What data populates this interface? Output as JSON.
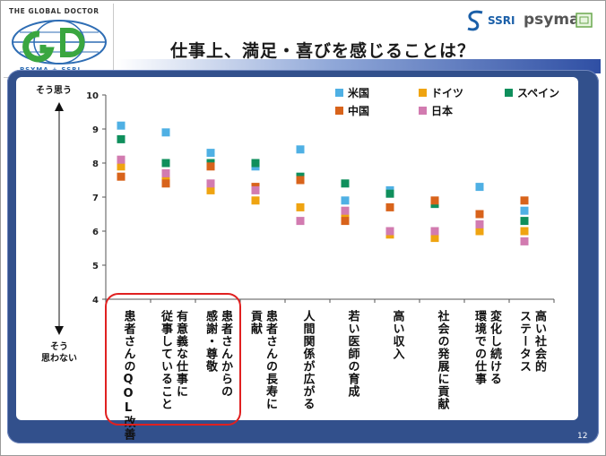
{
  "header": {
    "logo_left": {
      "title": "THE GLOBAL DOCTOR",
      "sub": "PSYMA + SSRI"
    },
    "logo_right": {
      "ssri": "SSRI",
      "psyma": "psyma"
    },
    "title": "仕事上、満足・喜びを感じることは？"
  },
  "page_number": "12",
  "colors": {
    "usa": "#4fb0e4",
    "germany": "#efa411",
    "spain": "#0f8f5c",
    "china": "#d8631b",
    "japan": "#d27bb0",
    "panel": "#32508c",
    "highlight": "#e02020"
  },
  "chart_data": {
    "type": "scatter",
    "title": "",
    "ylim": [
      4,
      10
    ],
    "yticks": [
      "4",
      "5",
      "6",
      "7",
      "8",
      "9",
      "10"
    ],
    "y_axis_top_label": "そう思う",
    "y_axis_bottom_label": [
      "そう",
      "思わない"
    ],
    "grid": false,
    "legend_position": "top-right",
    "categories": [
      [
        "患者さんのQOL改善"
      ],
      [
        "有意義な仕事に",
        "従事していること"
      ],
      [
        "患者さんからの",
        "感謝・尊敬"
      ],
      [
        "患者さんの長寿に",
        "貢献"
      ],
      [
        "人間関係が広がる"
      ],
      [
        "若い医師の育成"
      ],
      [
        "高い収入"
      ],
      [
        "社会の発展に貢献"
      ],
      [
        "変化し続ける",
        "環境での仕事"
      ],
      [
        "高い社会的",
        "ステータス"
      ]
    ],
    "highlighted_categories": [
      0,
      1,
      2
    ],
    "series": [
      {
        "name": "米国",
        "color_key": "usa",
        "values": [
          9.1,
          8.9,
          8.3,
          7.9,
          8.4,
          6.9,
          7.2,
          6.8,
          7.3,
          6.6
        ]
      },
      {
        "name": "ドイツ",
        "color_key": "germany",
        "values": [
          7.9,
          7.5,
          7.2,
          6.9,
          6.7,
          6.4,
          5.9,
          5.8,
          6.0,
          6.0
        ]
      },
      {
        "name": "スペイン",
        "color_key": "spain",
        "values": [
          8.7,
          8.0,
          8.0,
          8.0,
          7.6,
          7.4,
          7.1,
          6.8,
          6.5,
          6.3
        ]
      },
      {
        "name": "中国",
        "color_key": "china",
        "values": [
          7.6,
          7.4,
          7.9,
          7.3,
          7.5,
          6.3,
          6.7,
          6.9,
          6.5,
          6.9
        ]
      },
      {
        "name": "日本",
        "color_key": "japan",
        "values": [
          8.1,
          7.7,
          7.4,
          7.2,
          6.3,
          6.6,
          6.0,
          6.0,
          6.2,
          5.7
        ]
      }
    ]
  }
}
